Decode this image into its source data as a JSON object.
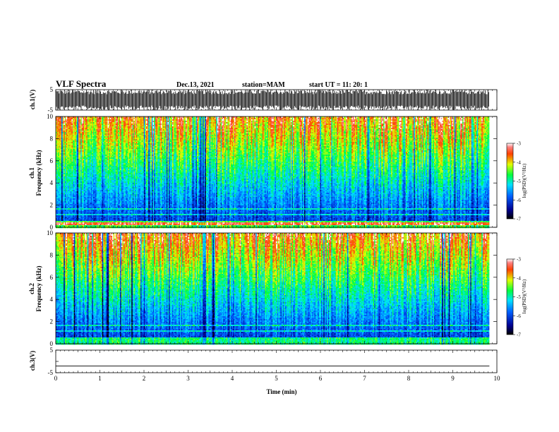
{
  "header": {
    "title": "VLF Spectra",
    "date": "Dec.13, 2021",
    "station": "station=MAM",
    "start": "start  UT =   11: 20: 1"
  },
  "chart_data": [
    {
      "type": "line",
      "panel": "ch1-waveform",
      "ylabel": "ch.1(V)",
      "ylim": [
        -5,
        5
      ],
      "yticks": [
        "5",
        "-5"
      ],
      "note": "dense pulse train spanning full ±5 V range"
    },
    {
      "type": "heatmap",
      "panel": "ch1-spectrogram",
      "ylabel": "ch.1\nFrequency (kHz)",
      "ylim": [
        0,
        10
      ],
      "yticks": [
        "0",
        "2",
        "4",
        "6",
        "8",
        "10"
      ],
      "colorbar": {
        "label": "log(PSD)(V²/Hz)",
        "range": [
          -7,
          -3
        ],
        "ticks": [
          "-3",
          "-4",
          "-5",
          "-6",
          "-7"
        ]
      }
    },
    {
      "type": "heatmap",
      "panel": "ch2-spectrogram",
      "ylabel": "ch.2\nFrequency (kHz)",
      "ylim": [
        0,
        10
      ],
      "yticks": [
        "0",
        "2",
        "4",
        "6",
        "8",
        "10"
      ],
      "colorbar": {
        "label": "log(PSD)(V²/Hz)",
        "range": [
          -7,
          -3
        ],
        "ticks": [
          "-3",
          "-4",
          "-5",
          "-6",
          "-7"
        ]
      }
    },
    {
      "type": "line",
      "panel": "ch3-waveform",
      "ylabel": "ch.3(V)",
      "ylim": [
        -5,
        5
      ],
      "yticks": [
        "5",
        "0",
        "-5"
      ],
      "values_y": [
        -2,
        -2
      ]
    }
  ],
  "xaxis": {
    "label": "Time (min)",
    "xlim": [
      0,
      10
    ],
    "ticks": [
      "0",
      "1",
      "2",
      "3",
      "4",
      "5",
      "6",
      "7",
      "8",
      "9",
      "10"
    ],
    "data_end": 9.83
  },
  "colors": {
    "low": "#000080",
    "mid_low": "#00c8ff",
    "mid": "#00ff00",
    "mid_high": "#ffff00",
    "high": "#ff0000"
  }
}
